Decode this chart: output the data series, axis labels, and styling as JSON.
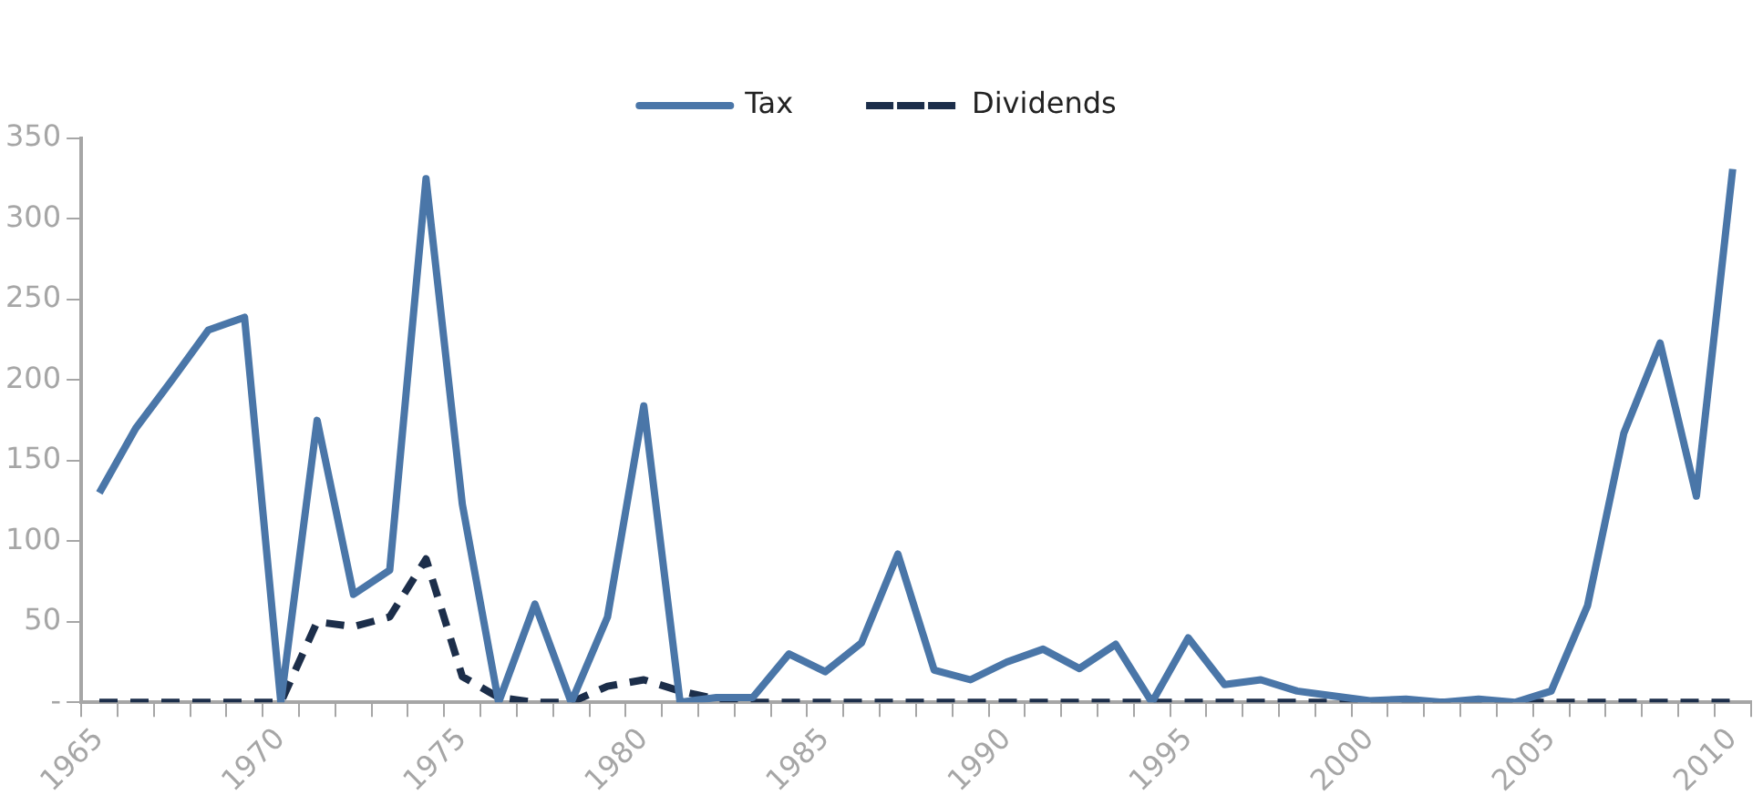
{
  "chart_data": {
    "type": "line",
    "categories": [
      "1965",
      null,
      null,
      null,
      null,
      "1970",
      null,
      null,
      null,
      null,
      "1975",
      null,
      null,
      null,
      null,
      "1980",
      null,
      null,
      null,
      null,
      "1985",
      null,
      null,
      null,
      null,
      "1990",
      null,
      null,
      null,
      null,
      "1995",
      null,
      null,
      null,
      null,
      "2000",
      null,
      null,
      null,
      null,
      "2005",
      null,
      null,
      null,
      null,
      "2010"
    ],
    "series": [
      {
        "name": "Tax",
        "color": "#4a76a8",
        "line_style": "solid",
        "values": [
          130,
          170,
          200,
          231,
          239,
          0,
          175,
          67,
          82,
          325,
          123,
          0,
          61,
          0,
          53,
          184,
          0,
          3,
          3,
          30,
          19,
          37,
          92,
          20,
          14,
          25,
          33,
          21,
          36,
          0,
          40,
          11,
          14,
          7,
          4,
          1,
          2,
          0,
          2,
          0,
          7,
          60,
          167,
          223,
          128,
          331
        ]
      },
      {
        "name": "Dividends",
        "color": "#1c2e4a",
        "line_style": "dashed",
        "values": [
          0,
          0,
          0,
          0,
          0,
          0,
          50,
          47,
          53,
          89,
          16,
          3,
          0,
          0,
          10,
          14,
          7,
          2,
          0,
          0,
          0,
          0,
          0,
          0,
          0,
          0,
          0,
          0,
          0,
          0,
          0,
          0,
          0,
          0,
          0,
          0,
          0,
          0,
          0,
          0,
          0,
          0,
          0,
          0,
          0,
          0
        ]
      }
    ],
    "ylim": [
      0,
      350
    ],
    "yticks": [
      {
        "value": 0,
        "label": "-"
      },
      50,
      100,
      150,
      200,
      250,
      300,
      350
    ],
    "grid": false,
    "legend": "top",
    "marker": "none"
  }
}
